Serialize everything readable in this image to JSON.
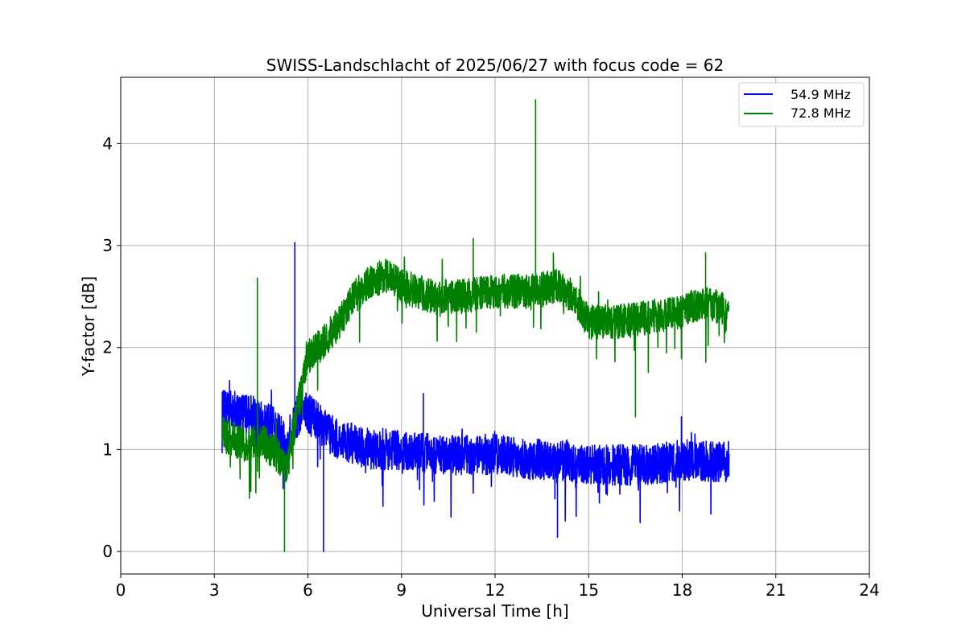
{
  "chart_data": {
    "type": "line",
    "title": "SWISS-Landschlacht of 2025/06/27 with focus code = 62",
    "xlabel": "Universal Time [h]",
    "ylabel": "Y-factor [dB]",
    "xlim": [
      0,
      24
    ],
    "ylim": [
      -0.22,
      4.65
    ],
    "xticks": [
      "0",
      "3",
      "6",
      "9",
      "12",
      "15",
      "18",
      "21",
      "24"
    ],
    "yticks": [
      "0",
      "1",
      "2",
      "3",
      "4"
    ],
    "grid": true,
    "legend_position": "top-right",
    "series": [
      {
        "name": "54.9 MHz",
        "color": "#0000ff",
        "x": [
          3.25,
          4.0,
          4.5,
          5.0,
          5.3,
          5.5,
          5.8,
          6.2,
          6.5,
          7.0,
          8.0,
          9.0,
          10.0,
          11.0,
          12.0,
          13.0,
          14.0,
          15.0,
          16.0,
          17.0,
          18.0,
          19.0,
          19.5
        ],
        "values": [
          1.4,
          1.35,
          1.3,
          1.2,
          1.05,
          1.2,
          1.4,
          1.3,
          1.2,
          1.1,
          1.0,
          1.0,
          0.95,
          0.95,
          0.95,
          0.9,
          0.9,
          0.85,
          0.85,
          0.85,
          0.9,
          0.88,
          0.88
        ],
        "annotations": [
          {
            "x": 5.58,
            "y": 3.03
          },
          {
            "x": 6.5,
            "y": 0.0
          },
          {
            "x": 9.7,
            "y": 1.55
          },
          {
            "x": 14.0,
            "y": 0.14
          }
        ]
      },
      {
        "name": "72.8 MHz",
        "color": "#008000",
        "x": [
          3.25,
          4.0,
          4.5,
          5.0,
          5.3,
          5.6,
          6.0,
          6.5,
          7.0,
          7.5,
          8.0,
          8.5,
          9.0,
          10.0,
          11.0,
          12.0,
          13.0,
          14.0,
          14.5,
          15.0,
          16.0,
          17.0,
          18.0,
          18.7,
          19.5
        ],
        "values": [
          1.15,
          1.05,
          1.1,
          0.95,
          0.8,
          1.3,
          1.9,
          2.05,
          2.25,
          2.5,
          2.65,
          2.7,
          2.6,
          2.5,
          2.5,
          2.55,
          2.55,
          2.6,
          2.5,
          2.25,
          2.25,
          2.3,
          2.35,
          2.45,
          2.35
        ],
        "annotations": [
          {
            "x": 4.38,
            "y": 2.68
          },
          {
            "x": 5.25,
            "y": 0.0
          },
          {
            "x": 11.3,
            "y": 3.07
          },
          {
            "x": 13.3,
            "y": 4.43
          },
          {
            "x": 16.5,
            "y": 1.32
          },
          {
            "x": 18.75,
            "y": 2.93
          }
        ]
      }
    ]
  }
}
